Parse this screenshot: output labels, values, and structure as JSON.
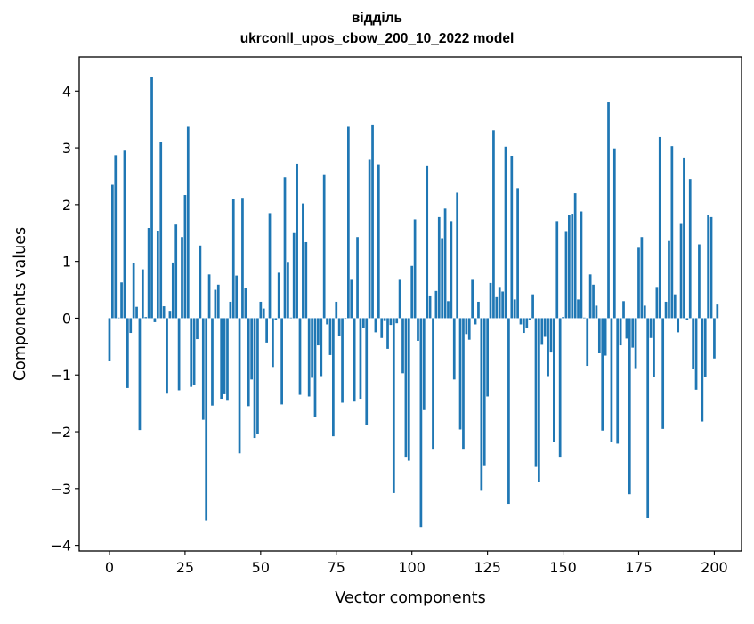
{
  "chart_data": {
    "type": "bar",
    "title_line1": "відділь",
    "title_line2": "ukrconll_upos_cbow_200_10_2022 model",
    "xlabel": "Vector components",
    "ylabel": "Components values",
    "xlim": [
      -10,
      209
    ],
    "ylim": [
      -4.1,
      4.6
    ],
    "xticks": [
      0,
      25,
      50,
      75,
      100,
      125,
      150,
      175,
      200
    ],
    "yticks": [
      -4,
      -3,
      -2,
      -1,
      0,
      1,
      2,
      3,
      4
    ],
    "xtick_labels": [
      "0",
      "25",
      "50",
      "75",
      "100",
      "125",
      "150",
      "175",
      "200"
    ],
    "ytick_labels": [
      "−4",
      "−3",
      "−2",
      "−1",
      "0",
      "1",
      "2",
      "3",
      "4"
    ],
    "bar_color": "#1f77b4",
    "values": [
      -0.76,
      2.35,
      2.87,
      0.01,
      0.63,
      2.95,
      -1.23,
      -0.26,
      0.97,
      0.2,
      -1.97,
      0.86,
      0.02,
      1.59,
      4.24,
      -0.07,
      1.54,
      3.11,
      0.21,
      -1.33,
      0.13,
      0.98,
      1.65,
      -1.27,
      1.43,
      2.17,
      3.37,
      -1.21,
      -1.18,
      -0.37,
      1.28,
      -1.79,
      -3.56,
      0.77,
      -1.54,
      0.5,
      0.59,
      -1.42,
      -1.34,
      -1.44,
      0.29,
      2.1,
      0.75,
      -2.38,
      2.12,
      0.53,
      -1.55,
      -1.08,
      -2.11,
      -2.04,
      0.29,
      0.17,
      -0.43,
      1.85,
      -0.86,
      -0.03,
      0.8,
      -1.52,
      2.48,
      0.99,
      0.01,
      1.5,
      2.72,
      -1.35,
      2.02,
      1.34,
      -1.38,
      -1.05,
      -1.74,
      -0.48,
      -1.02,
      2.52,
      -0.11,
      -0.65,
      -2.08,
      0.29,
      -0.32,
      -1.49,
      0.0,
      3.37,
      0.69,
      -1.47,
      1.43,
      -1.42,
      -0.18,
      -1.88,
      2.79,
      3.41,
      -0.25,
      2.71,
      -0.35,
      -0.05,
      -0.54,
      -0.12,
      -3.08,
      -0.09,
      0.69,
      -0.97,
      -2.44,
      -2.51,
      0.92,
      1.74,
      -0.4,
      -3.68,
      -1.62,
      2.69,
      0.4,
      -2.3,
      0.48,
      1.78,
      1.41,
      1.93,
      0.3,
      1.71,
      -1.08,
      2.21,
      -1.96,
      -2.3,
      -0.28,
      -0.38,
      0.69,
      -0.11,
      0.29,
      -3.04,
      -2.59,
      -1.38,
      0.62,
      3.31,
      0.37,
      0.55,
      0.47,
      3.02,
      -3.27,
      2.86,
      0.33,
      2.29,
      -0.11,
      -0.26,
      -0.18,
      -0.04,
      0.42,
      -2.62,
      -2.88,
      -0.47,
      -0.33,
      -1.02,
      -0.59,
      -2.18,
      1.71,
      -2.44,
      0.02,
      1.52,
      1.82,
      1.84,
      2.2,
      0.33,
      1.88,
      0.01,
      -0.84,
      0.77,
      0.59,
      0.22,
      -0.62,
      -1.98,
      -0.66,
      3.8,
      -2.18,
      2.99,
      -2.21,
      -0.48,
      0.3,
      -0.36,
      -3.1,
      -0.52,
      -0.88,
      1.24,
      1.43,
      0.22,
      -3.52,
      -0.35,
      -1.04,
      0.55,
      3.19,
      -1.95,
      0.29,
      1.36,
      3.03,
      0.42,
      -0.25,
      1.66,
      2.83,
      -0.04,
      2.45,
      -0.89,
      -1.26,
      1.3,
      -1.82,
      -1.04,
      1.82,
      1.78,
      -0.71,
      0.24
    ]
  }
}
